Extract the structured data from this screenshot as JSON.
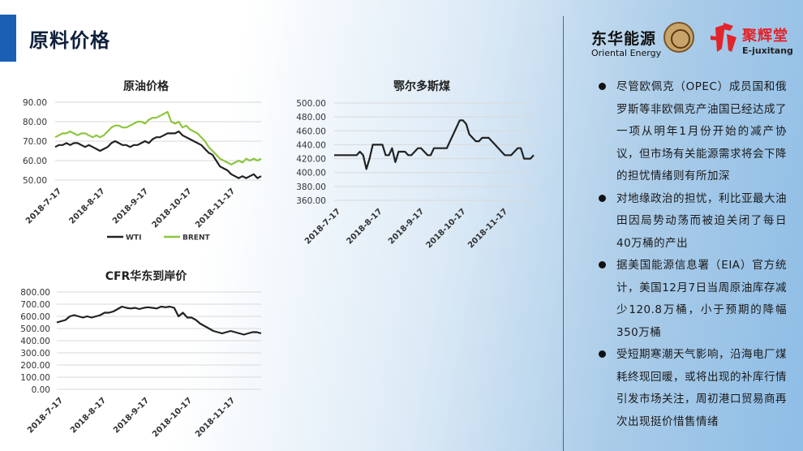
{
  "page": {
    "title": "原料价格"
  },
  "logos": {
    "left_zh": "东华能源",
    "left_en": "Oriental Energy",
    "right_zh": "聚辉堂",
    "right_en": "E-juxitang",
    "accent": "#e2242b"
  },
  "bullets": [
    "尽管欧佩克（OPEC）成员国和俄罗斯等非欧佩克产油国已经达成了一项从明年1月份开始的减产协议，但市场有关能源需求将会下降的担忧情绪则有所加深",
    "对地缘政治的担忧，利比亚最大油田因局势动荡而被迫关闭了每日40万桶的产出",
    "据美国能源信息署（EIA）官方统计，美国12月7日当周原油库存减少120.8万桶，小于预期的降幅350万桶",
    "受短期寒潮天气影响，沿海电厂煤耗终现回暖，或将出现的补库行情引发市场关注，周初港口贸易商再次出现挺价惜售情绪"
  ],
  "chart_data": [
    {
      "type": "line",
      "title": "原油价格",
      "x_ticks": [
        "2018-7-17",
        "2018-8-17",
        "2018-9-17",
        "2018-10-17",
        "2018-11-17"
      ],
      "y_ticks": [
        "50.00",
        "60.00",
        "70.00",
        "80.00",
        "90.00"
      ],
      "ylim": [
        50,
        90
      ],
      "grid": true,
      "legend": "bottom",
      "series": [
        {
          "name": "WTI",
          "color": "#222222",
          "values": [
            67,
            68,
            68,
            69,
            68,
            69,
            69,
            68,
            67,
            68,
            67,
            66,
            65,
            66,
            67,
            69,
            70,
            69,
            68,
            68,
            67,
            68,
            68,
            69,
            70,
            69,
            71,
            72,
            72,
            73,
            74,
            74,
            74,
            75,
            73,
            72,
            71,
            70,
            69,
            68,
            66,
            64,
            63,
            60,
            57,
            56,
            55,
            53,
            52,
            51,
            52,
            51,
            52,
            53,
            51,
            52
          ]
        },
        {
          "name": "BRENT",
          "color": "#8dc63f",
          "values": [
            72,
            73,
            74,
            74,
            75,
            74,
            73,
            74,
            74,
            73,
            72,
            73,
            72,
            73,
            75,
            77,
            78,
            78,
            77,
            77,
            78,
            79,
            80,
            80,
            79,
            81,
            82,
            82,
            83,
            84,
            85,
            80,
            79,
            80,
            77,
            78,
            76,
            75,
            74,
            72,
            70,
            67,
            65,
            63,
            61,
            60,
            59,
            58,
            59,
            60,
            59,
            61,
            60,
            61,
            60,
            61
          ]
        }
      ]
    },
    {
      "type": "line",
      "title": "鄂尔多斯煤",
      "x_ticks": [
        "2018-7-17",
        "2018-8-17",
        "2018-9-17",
        "2018-10-17",
        "2018-11-17"
      ],
      "y_ticks": [
        "360.00",
        "380.00",
        "400.00",
        "420.00",
        "440.00",
        "460.00",
        "480.00",
        "500.00"
      ],
      "ylim": [
        360,
        500
      ],
      "grid": true,
      "series": [
        {
          "name": "鄂尔多斯煤",
          "color": "#222222",
          "values": [
            425,
            425,
            425,
            425,
            425,
            425,
            425,
            425,
            430,
            425,
            405,
            420,
            440,
            440,
            440,
            440,
            425,
            425,
            435,
            415,
            430,
            430,
            430,
            425,
            425,
            430,
            435,
            435,
            430,
            425,
            425,
            435,
            435,
            435,
            435,
            435,
            445,
            455,
            465,
            475,
            475,
            470,
            455,
            450,
            445,
            445,
            450,
            450,
            450,
            445,
            440,
            435,
            430,
            425,
            425,
            425,
            430,
            435,
            435,
            420,
            420,
            420,
            425
          ]
        }
      ]
    },
    {
      "type": "line",
      "title": "CFR华东到岸价",
      "x_ticks": [
        "2018-7-17",
        "2018-8-17",
        "2018-9-17",
        "2018-10-17",
        "2018-11-17"
      ],
      "y_ticks": [
        "0.00",
        "100.00",
        "200.00",
        "300.00",
        "400.00",
        "500.00",
        "600.00",
        "700.00",
        "800.00"
      ],
      "ylim": [
        0,
        800
      ],
      "grid": true,
      "series": [
        {
          "name": "CFR华东到岸价",
          "color": "#222222",
          "values": [
            550,
            560,
            570,
            600,
            610,
            600,
            590,
            600,
            590,
            600,
            610,
            630,
            630,
            640,
            660,
            680,
            670,
            665,
            670,
            660,
            670,
            675,
            670,
            665,
            680,
            675,
            680,
            670,
            600,
            630,
            590,
            590,
            570,
            540,
            520,
            500,
            480,
            470,
            460,
            470,
            480,
            470,
            460,
            450,
            460,
            470,
            470,
            460
          ]
        }
      ]
    }
  ]
}
